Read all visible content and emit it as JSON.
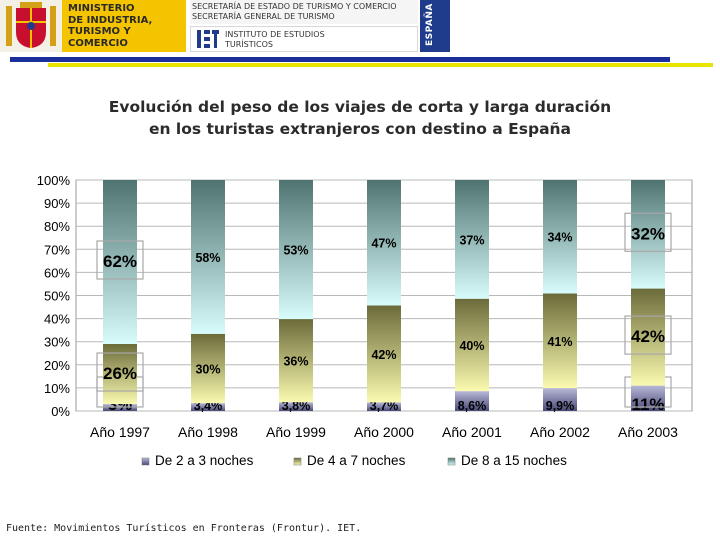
{
  "header": {
    "ministry_text": "MINISTERIO\nDE INDUSTRIA,\nTURISMO Y\nCOMERCIO",
    "secretaria_text": "SECRETARÍA DE ESTADO DE TURISMO Y COMERCIO\nSECRETARÍA GENERAL DE TURISMO",
    "instituto_text": "INSTITUTO DE ESTUDIOS\nTURÍSTICOS",
    "espana_text": "ESPAÑA",
    "colors": {
      "ministry_bg": "#f5c400",
      "espana_bg": "#1f3b8c",
      "rule_blue": "#1a2f9c",
      "rule_yellow": "#e9e300"
    },
    "icons": [
      "spain-coat-of-arms-icon",
      "iet-logo-icon"
    ]
  },
  "title": "Evolución del peso de los viajes de corta y larga duración\nen los turistas extranjeros con destino a España",
  "source": "Fuente: Movimientos Turísticos en Fronteras (Frontur). IET.",
  "chart_data": {
    "type": "bar",
    "stacked": true,
    "percent_stacked": true,
    "categories": [
      "Año 1997",
      "Año 1998",
      "Año 1999",
      "Año 2000",
      "Año 2001",
      "Año 2002",
      "Año 2003"
    ],
    "series": [
      {
        "name": "De 2 a 3 noches",
        "values": [
          3,
          3.4,
          3.8,
          3.7,
          8.6,
          9.9,
          11
        ],
        "labels": [
          "3%",
          "3,4%",
          "3,8%",
          "3,7%",
          "8,6%",
          "9,9%",
          "11%"
        ],
        "color_top": "#b8b8d8",
        "color_bottom": "#4a4a78"
      },
      {
        "name": "De 4 a 7 noches",
        "values": [
          26,
          30,
          36,
          42,
          40,
          41,
          42
        ],
        "labels": [
          "26%",
          "30%",
          "36%",
          "42%",
          "40%",
          "41%",
          "42%"
        ],
        "color_top": "#6b6b3a",
        "color_bottom": "#fafab0"
      },
      {
        "name": "De 8 a 15 noches",
        "values": [
          62,
          58,
          53,
          47,
          37,
          34,
          32
        ],
        "labels": [
          "62%",
          "58%",
          "53%",
          "47%",
          "37%",
          "34%",
          "32%"
        ],
        "color_top": "#4f7470",
        "color_bottom": "#d8fbfb"
      }
    ],
    "highlighted": [
      {
        "category": "Año 1997",
        "series": "De 2 a 3 noches"
      },
      {
        "category": "Año 1997",
        "series": "De 4 a 7 noches"
      },
      {
        "category": "Año 1997",
        "series": "De 8 a 15 noches"
      },
      {
        "category": "Año 2003",
        "series": "De 2 a 3 noches"
      },
      {
        "category": "Año 2003",
        "series": "De 4 a 7 noches"
      },
      {
        "category": "Año 2003",
        "series": "De 8 a 15 noches"
      }
    ],
    "ylim": [
      0,
      100
    ],
    "yticks": [
      "0%",
      "10%",
      "20%",
      "30%",
      "40%",
      "50%",
      "60%",
      "70%",
      "80%",
      "90%",
      "100%"
    ],
    "grid": true,
    "legend_position": "bottom"
  }
}
